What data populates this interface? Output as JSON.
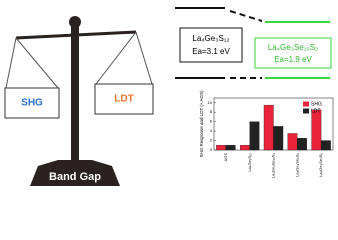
{
  "balance": {
    "left": "SHG",
    "right": "LDT",
    "base": "Band Gap"
  },
  "diagram": {
    "left_formula": "La₄Ge₃S₁₂",
    "left_energy": "Ea=3.1 eV",
    "right_formula": "La₄Ge₃Se₁₀S₂",
    "right_energy": "Ea=1.9 eV"
  },
  "chart_data": {
    "type": "bar",
    "ylabel": "SHG Response and LDT (× AGS)",
    "categories": [
      "AGS",
      "La₄Ge₃S₁₂",
      "La₄Ge₃Se₁₀S₂",
      "La₄Ge₃Se₆S₆",
      "La₄Ge₃Se₃S₉"
    ],
    "series": [
      {
        "name": "SHG",
        "color": "#e8233a",
        "values": [
          1,
          1,
          9.5,
          3.5,
          8.5
        ]
      },
      {
        "name": "LDT",
        "color": "#222222",
        "values": [
          1,
          6,
          5,
          2.5,
          2
        ]
      }
    ],
    "ylim": [
      0,
      11
    ],
    "yticks": [
      0,
      2,
      4,
      6,
      8,
      10
    ],
    "legend": "upper right"
  }
}
